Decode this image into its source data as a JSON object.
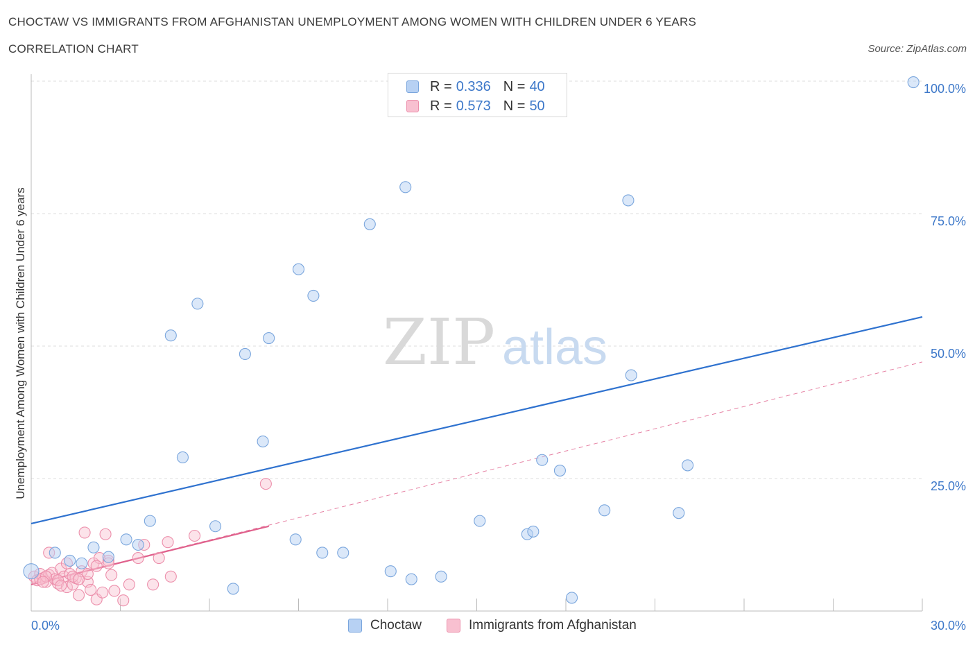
{
  "header": {
    "title": "CHOCTAW VS IMMIGRANTS FROM AFGHANISTAN UNEMPLOYMENT AMONG WOMEN WITH CHILDREN UNDER 6 YEARS",
    "subtitle": "CORRELATION CHART",
    "source": "Source: ZipAtlas.com"
  },
  "watermark": {
    "zip": "ZIP",
    "atlas": "atlas"
  },
  "legend": {
    "r_label": "R =",
    "n_label": "N =",
    "rows": [
      {
        "series": "Choctaw",
        "r": "0.336",
        "n": "40"
      },
      {
        "series": "Immigrants from Afghanistan",
        "r": "0.573",
        "n": "50"
      }
    ]
  },
  "colors": {
    "choctaw_fill": "#b7d1f3",
    "choctaw_stroke": "#7aa6dd",
    "choctaw_line": "#2f72cf",
    "afghan_fill": "#f8c0d0",
    "afghan_stroke": "#ec8fab",
    "afghan_line": "#e0628d",
    "axis_text": "#3d78c9",
    "grid": "#dcdcdc"
  },
  "chart_data": {
    "type": "scatter",
    "title": "CHOCTAW VS IMMIGRANTS FROM AFGHANISTAN UNEMPLOYMENT AMONG WOMEN WITH CHILDREN UNDER 6 YEARS",
    "xlabel": "",
    "ylabel": "Unemployment Among Women with Children Under 6 years",
    "xlim": [
      0,
      30
    ],
    "ylim": [
      0,
      100
    ],
    "x_tick_labels": [
      {
        "value": 0,
        "label": "0.0%"
      },
      {
        "value": 30,
        "label": "30.0%"
      }
    ],
    "y_tick_labels": [
      {
        "value": 25,
        "label": "25.0%"
      },
      {
        "value": 50,
        "label": "50.0%"
      },
      {
        "value": 75,
        "label": "75.0%"
      },
      {
        "value": 100,
        "label": "100.0%"
      }
    ],
    "x_minor_ticks": [
      3,
      6,
      9,
      12,
      15,
      18,
      21,
      24,
      27,
      30
    ],
    "grid": true,
    "legend_position": "top-center",
    "series": [
      {
        "name": "Choctaw",
        "color": "#7aa6dd",
        "trend": {
          "x": [
            0,
            30
          ],
          "y": [
            16.5,
            55.5
          ],
          "style": "solid"
        },
        "points": [
          [
            0.0,
            7.5
          ],
          [
            0.8,
            11.0
          ],
          [
            1.3,
            9.5
          ],
          [
            1.7,
            9.0
          ],
          [
            2.1,
            12.0
          ],
          [
            2.6,
            10.2
          ],
          [
            3.2,
            13.5
          ],
          [
            3.6,
            12.5
          ],
          [
            4.0,
            17.0
          ],
          [
            4.7,
            52.0
          ],
          [
            5.1,
            29.0
          ],
          [
            5.6,
            58.0
          ],
          [
            6.2,
            16.0
          ],
          [
            6.8,
            4.2
          ],
          [
            7.2,
            48.5
          ],
          [
            7.8,
            32.0
          ],
          [
            8.0,
            51.5
          ],
          [
            8.9,
            13.5
          ],
          [
            9.0,
            64.5
          ],
          [
            9.5,
            59.5
          ],
          [
            9.8,
            11.0
          ],
          [
            10.5,
            11.0
          ],
          [
            11.4,
            73.0
          ],
          [
            12.1,
            7.5
          ],
          [
            12.6,
            80.0
          ],
          [
            12.8,
            6.0
          ],
          [
            13.8,
            6.5
          ],
          [
            15.1,
            17.0
          ],
          [
            16.7,
            14.5
          ],
          [
            16.9,
            15.0
          ],
          [
            17.2,
            28.5
          ],
          [
            17.8,
            26.5
          ],
          [
            18.2,
            2.5
          ],
          [
            19.3,
            19.0
          ],
          [
            20.2,
            44.5
          ],
          [
            20.1,
            77.5
          ],
          [
            21.8,
            18.5
          ],
          [
            22.1,
            27.5
          ],
          [
            29.7,
            99.8
          ],
          [
            13.0,
            98.9
          ]
        ]
      },
      {
        "name": "Immigrants from Afghanistan",
        "color": "#ec8fab",
        "trend": {
          "x": [
            0,
            8
          ],
          "y": [
            5.0,
            16.0
          ],
          "style": "solid",
          "extended": {
            "x": [
              0,
              30
            ],
            "y": [
              5.0,
              47.0
            ],
            "style": "dashed"
          }
        },
        "points": [
          [
            0.1,
            6.5
          ],
          [
            0.2,
            5.8
          ],
          [
            0.3,
            7.0
          ],
          [
            0.4,
            6.2
          ],
          [
            0.5,
            5.5
          ],
          [
            0.6,
            6.8
          ],
          [
            0.7,
            7.2
          ],
          [
            0.8,
            6.0
          ],
          [
            0.9,
            5.2
          ],
          [
            1.0,
            8.0
          ],
          [
            1.1,
            6.5
          ],
          [
            1.2,
            4.5
          ],
          [
            1.3,
            7.0
          ],
          [
            1.4,
            5.0
          ],
          [
            1.5,
            6.2
          ],
          [
            1.6,
            3.0
          ],
          [
            1.7,
            7.5
          ],
          [
            1.8,
            14.8
          ],
          [
            1.9,
            5.5
          ],
          [
            2.0,
            4.0
          ],
          [
            2.1,
            9.0
          ],
          [
            2.2,
            2.2
          ],
          [
            2.3,
            10.0
          ],
          [
            2.4,
            3.5
          ],
          [
            2.5,
            14.5
          ],
          [
            2.6,
            9.5
          ],
          [
            2.8,
            3.8
          ],
          [
            3.1,
            2.0
          ],
          [
            3.3,
            5.0
          ],
          [
            3.6,
            10.0
          ],
          [
            3.8,
            12.5
          ],
          [
            4.1,
            5.0
          ],
          [
            4.3,
            10.0
          ],
          [
            4.6,
            13.0
          ],
          [
            4.7,
            6.5
          ],
          [
            5.5,
            14.2
          ],
          [
            7.9,
            24.0
          ],
          [
            0.6,
            11.0
          ],
          [
            1.2,
            9.0
          ],
          [
            2.6,
            9.0
          ],
          [
            0.3,
            6.0
          ],
          [
            0.5,
            6.5
          ],
          [
            0.9,
            5.8
          ],
          [
            1.4,
            6.5
          ],
          [
            1.9,
            7.0
          ],
          [
            2.2,
            8.5
          ],
          [
            2.7,
            6.8
          ],
          [
            0.4,
            5.5
          ],
          [
            1.0,
            4.8
          ],
          [
            1.6,
            6.0
          ]
        ]
      }
    ]
  }
}
